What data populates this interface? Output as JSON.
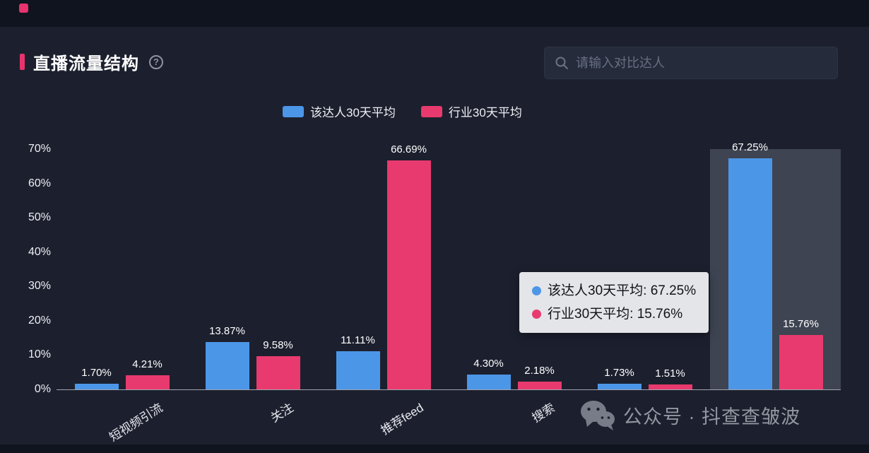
{
  "header": {
    "title": "直播流量结构",
    "help_glyph": "?",
    "accent_color": "#e8336e"
  },
  "search": {
    "placeholder": "请输入对比达人"
  },
  "legend": [
    {
      "label": "该达人30天平均",
      "color": "#4c96e8"
    },
    {
      "label": "行业30天平均",
      "color": "#e83a6e"
    }
  ],
  "chart_data": {
    "type": "bar",
    "title": "直播流量结构",
    "categories": [
      "短视频引流",
      "关注",
      "推荐feed",
      "搜索",
      "",
      ""
    ],
    "series": [
      {
        "name": "该达人30天平均",
        "color": "#4c96e8",
        "values": [
          1.7,
          13.87,
          11.11,
          4.3,
          1.73,
          67.25
        ]
      },
      {
        "name": "行业30天平均",
        "color": "#e83a6e",
        "values": [
          4.21,
          9.58,
          66.69,
          2.18,
          1.51,
          15.76
        ]
      }
    ],
    "ylabel_ticks": [
      "0%",
      "10%",
      "20%",
      "30%",
      "40%",
      "50%",
      "60%",
      "70%"
    ],
    "ylim": [
      0,
      70
    ],
    "grid": false,
    "legend_position": "top",
    "highlighted_group": 5
  },
  "tooltip": {
    "items": [
      {
        "text": "该达人30天平均: 67.25%",
        "color": "#4c96e8"
      },
      {
        "text": "行业30天平均: 15.76%",
        "color": "#e83a6e"
      }
    ]
  },
  "watermark": {
    "text": "公众号 · 抖查查皱波"
  }
}
